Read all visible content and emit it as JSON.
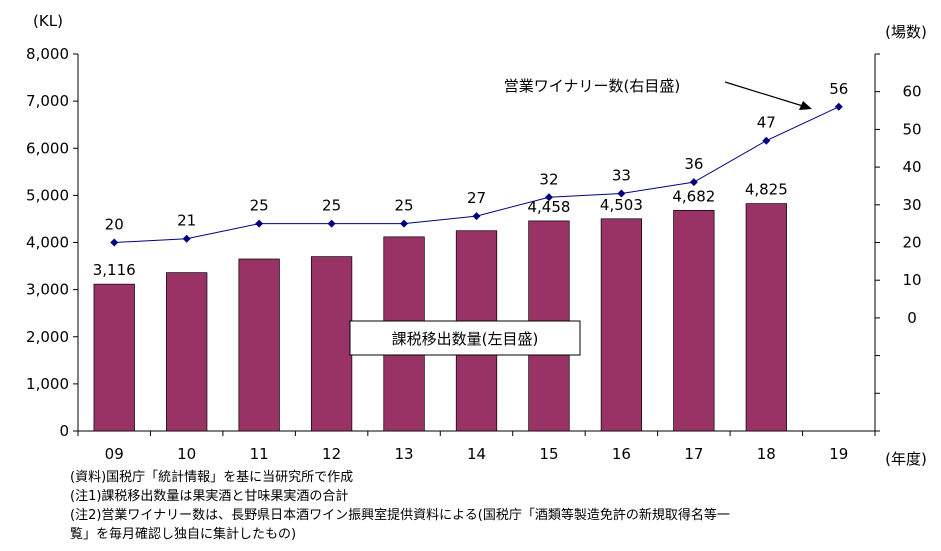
{
  "chart_data": {
    "type": "bar+line",
    "categories": [
      "09",
      "10",
      "11",
      "12",
      "13",
      "14",
      "15",
      "16",
      "17",
      "18",
      "19"
    ],
    "x_unit": "(年度)",
    "left_axis": {
      "unit": "(KL)",
      "range": [
        0,
        8000
      ],
      "ticks": [
        "0",
        "1,000",
        "2,000",
        "3,000",
        "4,000",
        "5,000",
        "6,000",
        "7,000",
        "8,000"
      ]
    },
    "right_axis": {
      "unit": "(場数)",
      "range": [
        -30,
        70
      ],
      "ticks": [
        "0",
        "10",
        "20",
        "30",
        "40",
        "50",
        "60"
      ]
    },
    "series": [
      {
        "name": "課税移出数量(左目盛)",
        "type": "bar",
        "axis": "left",
        "color": "#993366",
        "values": [
          3116,
          3360,
          3650,
          3700,
          4120,
          4250,
          4458,
          4503,
          4682,
          4825,
          null
        ],
        "labels": [
          "3,116",
          "",
          "",
          "",
          "",
          "",
          "4,458",
          "4,503",
          "4,682",
          "4,825",
          ""
        ]
      },
      {
        "name": "営業ワイナリー数(右目盛)",
        "type": "line",
        "axis": "right",
        "color": "#000080",
        "values": [
          20,
          21,
          25,
          25,
          25,
          27,
          32,
          33,
          36,
          47,
          56
        ],
        "labels": [
          "20",
          "21",
          "25",
          "25",
          "25",
          "27",
          "32",
          "33",
          "36",
          "47",
          "56"
        ]
      }
    ],
    "legend": "inline annotations",
    "grid": false
  },
  "notes": [
    "(資料)国税庁「統計情報」を基に当研究所で作成",
    "(注1)課税移出数量は果実酒と甘味果実酒の合計",
    "(注2)営業ワイナリー数は、長野県日本酒ワイン振興室提供資料による(国税庁「酒類等製造免許の新規取得名等一",
    "覧」を毎月確認し独自に集計したもの)"
  ]
}
